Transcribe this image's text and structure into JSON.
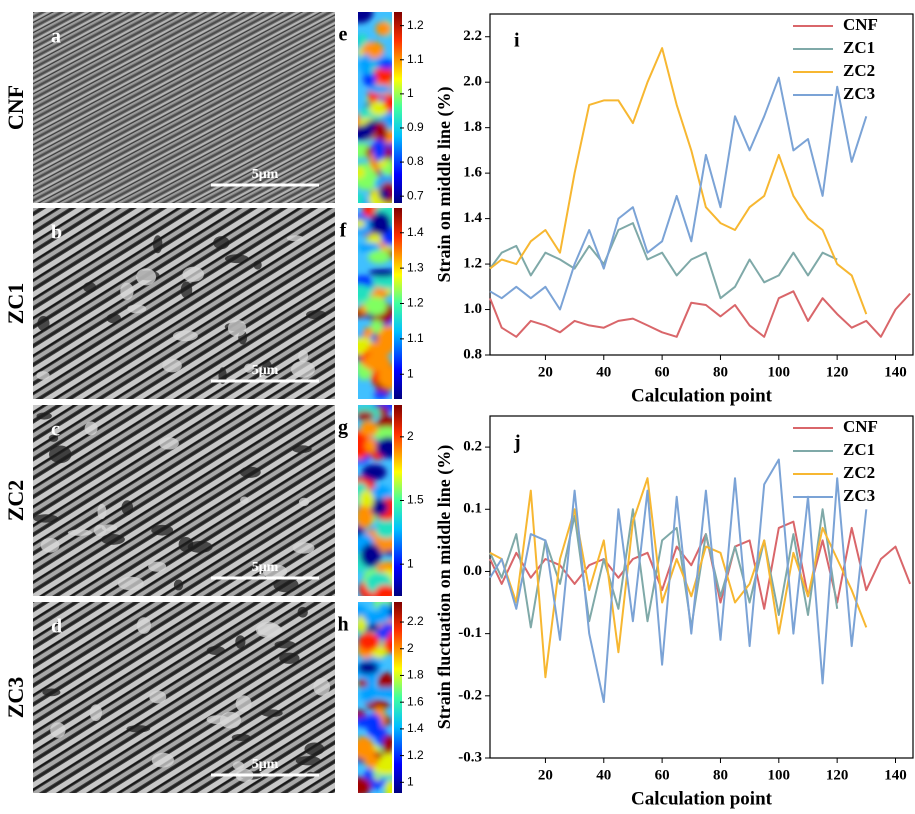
{
  "panels": {
    "images": [
      {
        "letter": "a",
        "row_label": "CNF",
        "scale_bar": "5μm"
      },
      {
        "letter": "b",
        "row_label": "ZC1",
        "scale_bar": "5μm"
      },
      {
        "letter": "c",
        "row_label": "ZC2",
        "scale_bar": "5μm"
      },
      {
        "letter": "d",
        "row_label": "ZC3",
        "scale_bar": "5μm"
      }
    ],
    "strain_maps": [
      {
        "letter": "e",
        "lim": [
          0.68,
          1.24
        ],
        "ticks": [
          0.7,
          0.8,
          0.9,
          1,
          1.1,
          1.2
        ]
      },
      {
        "letter": "f",
        "lim": [
          0.93,
          1.47
        ],
        "ticks": [
          1,
          1.1,
          1.2,
          1.3,
          1.4
        ]
      },
      {
        "letter": "g",
        "lim": [
          0.75,
          2.25
        ],
        "ticks": [
          1,
          1.5,
          2
        ]
      },
      {
        "letter": "h",
        "lim": [
          0.92,
          2.35
        ],
        "ticks": [
          1,
          1.2,
          1.4,
          1.6,
          1.8,
          2,
          2.2
        ]
      }
    ]
  },
  "chart_data": [
    {
      "type": "line",
      "label": "i",
      "xlabel": "Calculation point",
      "ylabel": "Strain on middle line (%)",
      "x": [
        1,
        5,
        10,
        15,
        20,
        25,
        30,
        35,
        40,
        45,
        50,
        55,
        60,
        65,
        70,
        75,
        80,
        85,
        90,
        95,
        100,
        105,
        110,
        115,
        120,
        125,
        130,
        135,
        140,
        145
      ],
      "xlim": [
        1,
        146
      ],
      "xticks": [
        20,
        40,
        60,
        80,
        100,
        120,
        140
      ],
      "ylim": [
        0.8,
        2.3
      ],
      "yticks": [
        0.8,
        {
          "value": 1,
          "label": "1.0"
        },
        1.2,
        1.4,
        1.6,
        1.8,
        {
          "value": 2,
          "label": "2.0"
        },
        2.2
      ],
      "legend": "upper right",
      "series": [
        {
          "name": "CNF",
          "color": "#d9666a",
          "values": [
            1.05,
            0.92,
            0.88,
            0.95,
            0.93,
            0.9,
            0.95,
            0.93,
            0.92,
            0.95,
            0.96,
            0.93,
            0.9,
            0.88,
            1.03,
            1.02,
            0.97,
            1.02,
            0.93,
            0.88,
            1.05,
            1.08,
            0.95,
            1.05,
            0.98,
            0.92,
            0.95,
            0.88,
            1.0,
            1.07
          ]
        },
        {
          "name": "ZC1",
          "color": "#7fa9a8",
          "values": [
            1.18,
            1.25,
            1.28,
            1.15,
            1.25,
            1.22,
            1.18,
            1.28,
            1.2,
            1.35,
            1.38,
            1.22,
            1.25,
            1.15,
            1.22,
            1.25,
            1.05,
            1.1,
            1.22,
            1.12,
            1.15,
            1.25,
            1.15,
            1.25,
            1.22,
            null,
            null,
            null,
            null,
            null
          ]
        },
        {
          "name": "ZC2",
          "color": "#f7b731",
          "values": [
            1.18,
            1.22,
            1.2,
            1.3,
            1.35,
            1.25,
            1.6,
            1.9,
            1.92,
            1.92,
            1.82,
            2.0,
            2.15,
            1.9,
            1.7,
            1.45,
            1.38,
            1.35,
            1.45,
            1.5,
            1.68,
            1.5,
            1.4,
            1.35,
            1.2,
            1.15,
            0.98,
            null,
            null,
            null
          ]
        },
        {
          "name": "ZC3",
          "color": "#7ba3d6",
          "values": [
            1.08,
            1.05,
            1.1,
            1.05,
            1.1,
            1.0,
            1.2,
            1.35,
            1.18,
            1.4,
            1.45,
            1.25,
            1.3,
            1.5,
            1.3,
            1.68,
            1.45,
            1.85,
            1.7,
            1.85,
            2.02,
            1.7,
            1.75,
            1.5,
            1.98,
            1.65,
            1.85,
            null,
            null,
            null
          ]
        }
      ]
    },
    {
      "type": "line",
      "label": "j",
      "xlabel": "Calculation point",
      "ylabel": "Strain fluctuation on middle line (%)",
      "x": [
        1,
        5,
        10,
        15,
        20,
        25,
        30,
        35,
        40,
        45,
        50,
        55,
        60,
        65,
        70,
        75,
        80,
        85,
        90,
        95,
        100,
        105,
        110,
        115,
        120,
        125,
        130,
        135,
        140,
        145
      ],
      "xlim": [
        1,
        146
      ],
      "xticks": [
        20,
        40,
        60,
        80,
        100,
        120,
        140
      ],
      "ylim": [
        -0.3,
        0.25
      ],
      "yticks": [
        -0.3,
        -0.2,
        -0.1,
        {
          "value": 0,
          "label": "0.0"
        },
        0.1,
        0.2
      ],
      "legend": "upper right",
      "series": [
        {
          "name": "CNF",
          "color": "#d9666a",
          "values": [
            0.02,
            -0.02,
            0.03,
            -0.01,
            0.02,
            0.01,
            -0.02,
            0.01,
            0.02,
            -0.01,
            0.02,
            0.03,
            -0.03,
            0.04,
            0.01,
            0.06,
            -0.05,
            0.04,
            0.05,
            -0.06,
            0.07,
            0.08,
            -0.04,
            0.05,
            -0.05,
            0.07,
            -0.03,
            0.02,
            0.04,
            -0.02
          ]
        },
        {
          "name": "ZC1",
          "color": "#7fa9a8",
          "values": [
            0.03,
            -0.01,
            0.06,
            -0.09,
            0.05,
            -0.02,
            0.09,
            -0.08,
            0.02,
            -0.06,
            0.1,
            -0.08,
            0.05,
            0.07,
            -0.09,
            0.06,
            -0.04,
            0.04,
            -0.05,
            0.05,
            -0.07,
            0.06,
            -0.07,
            0.1,
            -0.06,
            null,
            null,
            null,
            null,
            null
          ]
        },
        {
          "name": "ZC2",
          "color": "#f7b731",
          "values": [
            0.03,
            0.02,
            -0.05,
            0.13,
            -0.17,
            0.02,
            0.1,
            -0.03,
            0.05,
            -0.13,
            0.08,
            0.15,
            -0.05,
            0.02,
            -0.04,
            0.04,
            0.03,
            -0.05,
            -0.02,
            0.05,
            -0.1,
            0.03,
            -0.04,
            0.07,
            0.02,
            -0.03,
            -0.09,
            null,
            null,
            null
          ]
        },
        {
          "name": "ZC3",
          "color": "#7ba3d6",
          "values": [
            -0.01,
            0.02,
            -0.06,
            0.06,
            0.05,
            -0.11,
            0.13,
            -0.1,
            -0.21,
            0.1,
            -0.08,
            0.13,
            -0.15,
            0.12,
            -0.1,
            0.13,
            -0.11,
            0.15,
            -0.12,
            0.14,
            0.18,
            -0.1,
            0.12,
            -0.18,
            0.15,
            -0.12,
            0.1,
            null,
            null,
            null
          ]
        }
      ]
    }
  ]
}
